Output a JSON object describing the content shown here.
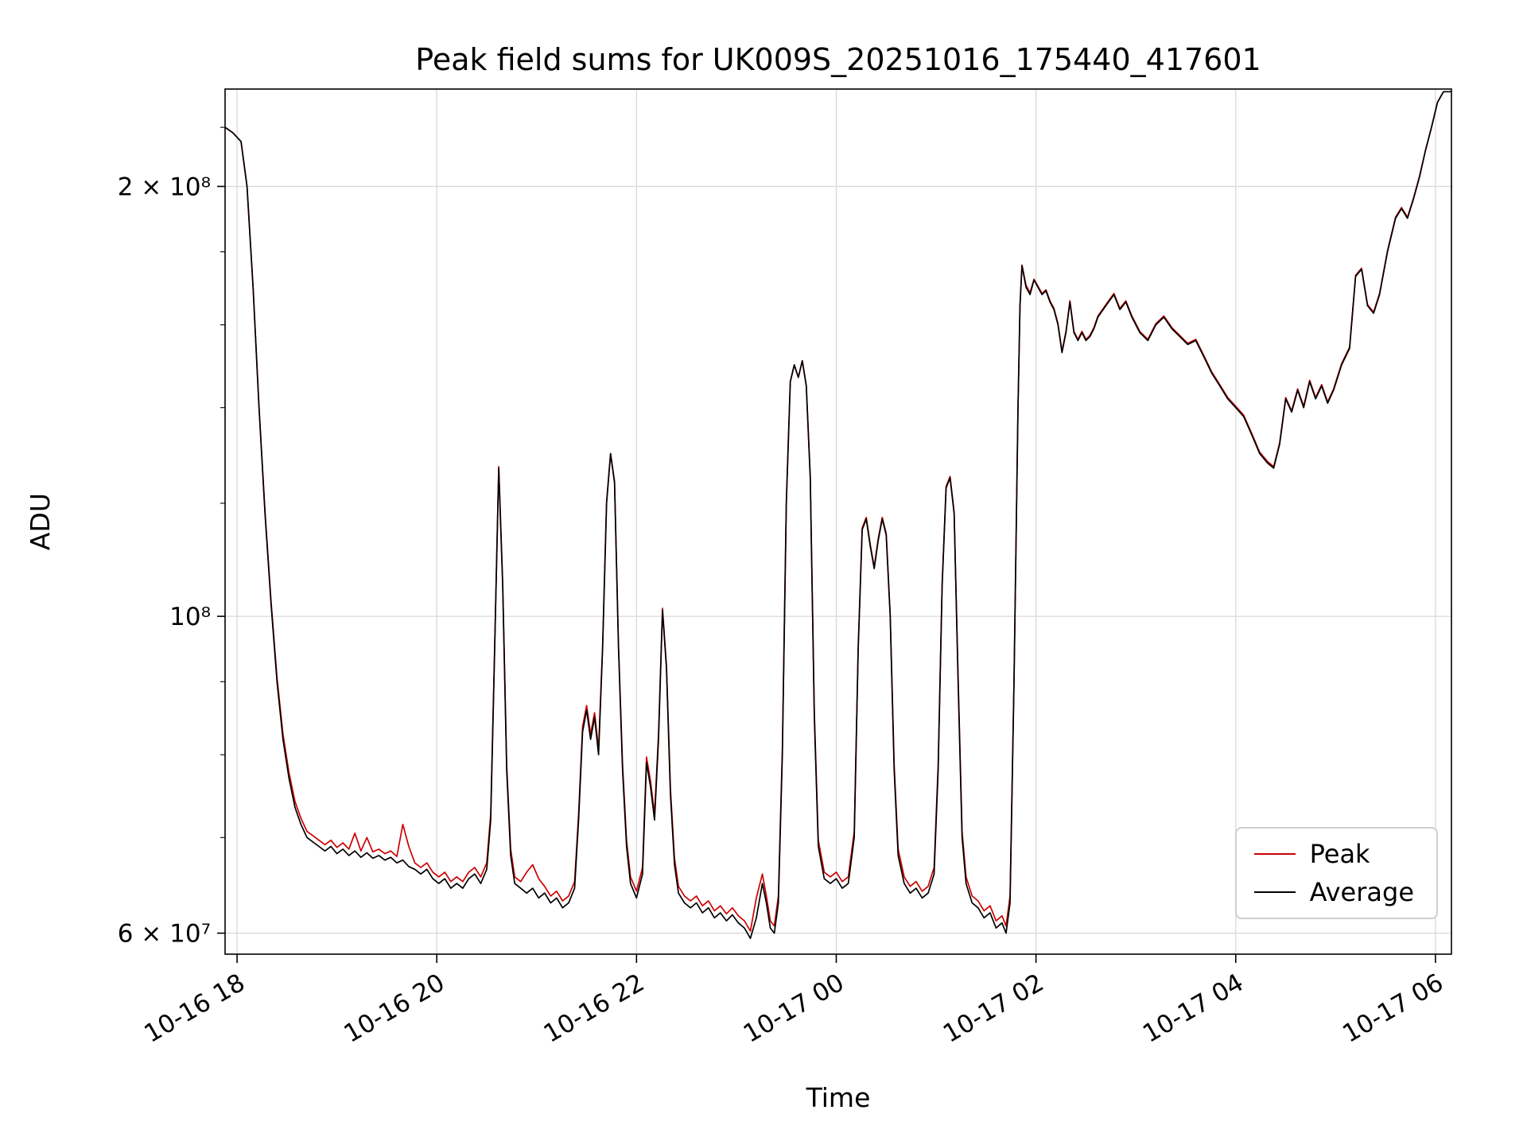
{
  "title": "Peak field sums for UK009S_20251016_175440_417601",
  "chart_data": {
    "type": "line",
    "title": "Peak field sums for UK009S_20251016_175440_417601",
    "xlabel": "Time",
    "ylabel": "ADU",
    "yscale": "log",
    "grid": true,
    "legend_position": "lower right",
    "x_unit": "decimal hours since 10-16 00:00",
    "value_scale": 10000000.0,
    "xlim": [
      17.88,
      30.16
    ],
    "ylim": [
      58000000.0,
      234000000.0
    ],
    "x_ticks": [
      {
        "hour": 18,
        "label": "10-16 18"
      },
      {
        "hour": 20,
        "label": "10-16 20"
      },
      {
        "hour": 22,
        "label": "10-16 22"
      },
      {
        "hour": 24,
        "label": "10-17 00"
      },
      {
        "hour": 26,
        "label": "10-17 02"
      },
      {
        "hour": 28,
        "label": "10-17 04"
      },
      {
        "hour": 30,
        "label": "10-17 06"
      }
    ],
    "y_ticks": [
      {
        "value": 60000000.0,
        "label": "6 × 10⁷"
      },
      {
        "value": 100000000.0,
        "label": "10⁸"
      },
      {
        "value": 200000000.0,
        "label": "2 × 10⁸"
      }
    ],
    "y_minor_ticks": [
      70000000.0,
      80000000.0,
      90000000.0,
      120000000.0,
      140000000.0,
      160000000.0,
      180000000.0,
      220000000.0
    ],
    "series_meta": [
      {
        "name": "Peak",
        "color": "#cc0000",
        "point_index": 2
      },
      {
        "name": "Average",
        "color": "#000000",
        "point_index": 1
      }
    ],
    "points_format": "[hour, average_x1e7, peak_x1e7]",
    "points": [
      [
        17.88,
        22.0,
        22.0
      ],
      [
        17.96,
        21.8,
        21.8
      ],
      [
        18.04,
        21.5,
        21.5
      ],
      [
        18.1,
        20.0,
        20.0
      ],
      [
        18.16,
        17.0,
        17.0
      ],
      [
        18.22,
        14.0,
        14.0
      ],
      [
        18.28,
        11.8,
        11.85
      ],
      [
        18.34,
        10.2,
        10.25
      ],
      [
        18.4,
        9.0,
        9.06
      ],
      [
        18.46,
        8.2,
        8.27
      ],
      [
        18.52,
        7.7,
        7.77
      ],
      [
        18.58,
        7.35,
        7.42
      ],
      [
        18.64,
        7.15,
        7.22
      ],
      [
        18.7,
        7.0,
        7.07
      ],
      [
        18.76,
        6.95,
        7.02
      ],
      [
        18.82,
        6.9,
        6.97
      ],
      [
        18.88,
        6.85,
        6.92
      ],
      [
        18.94,
        6.9,
        6.97
      ],
      [
        19.0,
        6.82,
        6.89
      ],
      [
        19.06,
        6.87,
        6.94
      ],
      [
        19.12,
        6.8,
        6.87
      ],
      [
        19.18,
        6.85,
        7.05
      ],
      [
        19.24,
        6.78,
        6.85
      ],
      [
        19.3,
        6.83,
        7.0
      ],
      [
        19.36,
        6.77,
        6.84
      ],
      [
        19.42,
        6.8,
        6.87
      ],
      [
        19.48,
        6.75,
        6.82
      ],
      [
        19.54,
        6.78,
        6.85
      ],
      [
        19.6,
        6.72,
        6.79
      ],
      [
        19.66,
        6.75,
        7.15
      ],
      [
        19.72,
        6.68,
        6.9
      ],
      [
        19.78,
        6.65,
        6.72
      ],
      [
        19.84,
        6.6,
        6.67
      ],
      [
        19.9,
        6.65,
        6.72
      ],
      [
        19.96,
        6.55,
        6.62
      ],
      [
        20.02,
        6.5,
        6.57
      ],
      [
        20.08,
        6.55,
        6.62
      ],
      [
        20.14,
        6.45,
        6.52
      ],
      [
        20.2,
        6.5,
        6.57
      ],
      [
        20.26,
        6.45,
        6.52
      ],
      [
        20.32,
        6.55,
        6.62
      ],
      [
        20.38,
        6.6,
        6.67
      ],
      [
        20.44,
        6.5,
        6.57
      ],
      [
        20.5,
        6.65,
        6.72
      ],
      [
        20.54,
        7.2,
        7.27
      ],
      [
        20.58,
        9.5,
        9.53
      ],
      [
        20.62,
        12.7,
        12.73
      ],
      [
        20.66,
        10.5,
        10.53
      ],
      [
        20.7,
        7.8,
        7.87
      ],
      [
        20.74,
        6.8,
        6.87
      ],
      [
        20.78,
        6.5,
        6.57
      ],
      [
        20.84,
        6.45,
        6.52
      ],
      [
        20.9,
        6.4,
        6.62
      ],
      [
        20.96,
        6.45,
        6.7
      ],
      [
        21.02,
        6.35,
        6.55
      ],
      [
        21.08,
        6.4,
        6.47
      ],
      [
        21.14,
        6.3,
        6.37
      ],
      [
        21.2,
        6.35,
        6.42
      ],
      [
        21.26,
        6.25,
        6.32
      ],
      [
        21.32,
        6.3,
        6.37
      ],
      [
        21.38,
        6.45,
        6.52
      ],
      [
        21.42,
        7.2,
        7.27
      ],
      [
        21.46,
        8.3,
        8.37
      ],
      [
        21.5,
        8.6,
        8.66
      ],
      [
        21.54,
        8.2,
        8.27
      ],
      [
        21.58,
        8.5,
        8.56
      ],
      [
        21.62,
        8.0,
        8.07
      ],
      [
        21.66,
        9.5,
        9.53
      ],
      [
        21.7,
        12.0,
        12.03
      ],
      [
        21.74,
        13.0,
        13.0
      ],
      [
        21.78,
        12.4,
        12.43
      ],
      [
        21.82,
        9.5,
        9.53
      ],
      [
        21.86,
        7.8,
        7.87
      ],
      [
        21.9,
        6.9,
        6.97
      ],
      [
        21.94,
        6.5,
        6.57
      ],
      [
        22.0,
        6.35,
        6.42
      ],
      [
        22.06,
        6.6,
        6.67
      ],
      [
        22.1,
        7.9,
        7.97
      ],
      [
        22.14,
        7.6,
        7.67
      ],
      [
        22.18,
        7.2,
        7.27
      ],
      [
        22.22,
        8.2,
        8.27
      ],
      [
        22.26,
        10.1,
        10.13
      ],
      [
        22.3,
        9.2,
        9.23
      ],
      [
        22.34,
        7.5,
        7.57
      ],
      [
        22.38,
        6.7,
        6.77
      ],
      [
        22.42,
        6.4,
        6.47
      ],
      [
        22.48,
        6.3,
        6.37
      ],
      [
        22.54,
        6.25,
        6.32
      ],
      [
        22.6,
        6.3,
        6.37
      ],
      [
        22.66,
        6.2,
        6.27
      ],
      [
        22.72,
        6.25,
        6.32
      ],
      [
        22.78,
        6.15,
        6.22
      ],
      [
        22.84,
        6.2,
        6.27
      ],
      [
        22.9,
        6.12,
        6.19
      ],
      [
        22.96,
        6.18,
        6.25
      ],
      [
        23.02,
        6.1,
        6.17
      ],
      [
        23.08,
        6.05,
        6.12
      ],
      [
        23.14,
        5.95,
        6.02
      ],
      [
        23.2,
        6.15,
        6.35
      ],
      [
        23.26,
        6.5,
        6.6
      ],
      [
        23.3,
        6.3,
        6.37
      ],
      [
        23.34,
        6.05,
        6.12
      ],
      [
        23.38,
        6.0,
        6.07
      ],
      [
        23.42,
        6.3,
        6.37
      ],
      [
        23.46,
        8.0,
        8.07
      ],
      [
        23.5,
        12.0,
        12.03
      ],
      [
        23.54,
        14.6,
        14.6
      ],
      [
        23.58,
        15.0,
        15.0
      ],
      [
        23.62,
        14.7,
        14.7
      ],
      [
        23.66,
        15.1,
        15.1
      ],
      [
        23.7,
        14.5,
        14.5
      ],
      [
        23.74,
        12.5,
        12.53
      ],
      [
        23.78,
        8.5,
        8.57
      ],
      [
        23.82,
        6.9,
        6.97
      ],
      [
        23.88,
        6.55,
        6.62
      ],
      [
        23.94,
        6.5,
        6.57
      ],
      [
        24.0,
        6.55,
        6.62
      ],
      [
        24.06,
        6.45,
        6.52
      ],
      [
        24.12,
        6.5,
        6.57
      ],
      [
        24.18,
        7.0,
        7.07
      ],
      [
        24.22,
        9.5,
        9.53
      ],
      [
        24.26,
        11.5,
        11.53
      ],
      [
        24.3,
        11.7,
        11.73
      ],
      [
        24.34,
        11.2,
        11.23
      ],
      [
        24.38,
        10.8,
        10.83
      ],
      [
        24.42,
        11.3,
        11.33
      ],
      [
        24.46,
        11.7,
        11.73
      ],
      [
        24.5,
        11.4,
        11.43
      ],
      [
        24.54,
        10.0,
        10.03
      ],
      [
        24.58,
        7.8,
        7.87
      ],
      [
        24.62,
        6.8,
        6.87
      ],
      [
        24.68,
        6.5,
        6.57
      ],
      [
        24.74,
        6.4,
        6.47
      ],
      [
        24.8,
        6.45,
        6.52
      ],
      [
        24.86,
        6.35,
        6.42
      ],
      [
        24.92,
        6.4,
        6.47
      ],
      [
        24.98,
        6.6,
        6.67
      ],
      [
        25.02,
        7.8,
        7.87
      ],
      [
        25.06,
        10.5,
        10.53
      ],
      [
        25.1,
        12.3,
        12.33
      ],
      [
        25.14,
        12.5,
        12.53
      ],
      [
        25.18,
        11.8,
        11.83
      ],
      [
        25.22,
        9.0,
        9.07
      ],
      [
        25.26,
        7.0,
        7.07
      ],
      [
        25.3,
        6.5,
        6.57
      ],
      [
        25.36,
        6.3,
        6.37
      ],
      [
        25.42,
        6.25,
        6.32
      ],
      [
        25.48,
        6.15,
        6.22
      ],
      [
        25.54,
        6.2,
        6.27
      ],
      [
        25.6,
        6.05,
        6.12
      ],
      [
        25.66,
        6.1,
        6.17
      ],
      [
        25.7,
        6.0,
        6.07
      ],
      [
        25.74,
        6.3,
        6.37
      ],
      [
        25.78,
        9.0,
        9.03
      ],
      [
        25.82,
        14.0,
        14.0
      ],
      [
        25.84,
        16.5,
        16.5
      ],
      [
        25.86,
        17.6,
        17.62
      ],
      [
        25.9,
        17.0,
        17.05
      ],
      [
        25.94,
        16.8,
        16.85
      ],
      [
        25.98,
        17.2,
        17.22
      ],
      [
        26.02,
        17.0,
        17.03
      ],
      [
        26.06,
        16.8,
        16.83
      ],
      [
        26.1,
        16.9,
        16.93
      ],
      [
        26.14,
        16.6,
        16.63
      ],
      [
        26.18,
        16.4,
        16.43
      ],
      [
        26.22,
        16.0,
        16.03
      ],
      [
        26.26,
        15.3,
        15.33
      ],
      [
        26.3,
        15.8,
        15.83
      ],
      [
        26.34,
        16.6,
        16.63
      ],
      [
        26.38,
        15.8,
        15.83
      ],
      [
        26.42,
        15.6,
        15.63
      ],
      [
        26.46,
        15.8,
        15.83
      ],
      [
        26.5,
        15.6,
        15.63
      ],
      [
        26.54,
        15.7,
        15.73
      ],
      [
        26.58,
        15.9,
        15.93
      ],
      [
        26.62,
        16.2,
        16.23
      ],
      [
        26.7,
        16.5,
        16.53
      ],
      [
        26.78,
        16.8,
        16.83
      ],
      [
        26.84,
        16.4,
        16.43
      ],
      [
        26.9,
        16.6,
        16.63
      ],
      [
        26.96,
        16.2,
        16.23
      ],
      [
        27.04,
        15.8,
        15.83
      ],
      [
        27.12,
        15.6,
        15.63
      ],
      [
        27.2,
        16.0,
        16.03
      ],
      [
        27.28,
        16.2,
        16.23
      ],
      [
        27.36,
        15.9,
        15.93
      ],
      [
        27.44,
        15.7,
        15.73
      ],
      [
        27.52,
        15.5,
        15.53
      ],
      [
        27.6,
        15.6,
        15.63
      ],
      [
        27.68,
        15.2,
        15.23
      ],
      [
        27.76,
        14.8,
        14.83
      ],
      [
        27.84,
        14.5,
        14.53
      ],
      [
        27.92,
        14.2,
        14.23
      ],
      [
        28.0,
        14.0,
        14.03
      ],
      [
        28.08,
        13.8,
        13.83
      ],
      [
        28.16,
        13.4,
        13.43
      ],
      [
        28.24,
        13.0,
        13.03
      ],
      [
        28.32,
        12.8,
        12.83
      ],
      [
        28.38,
        12.7,
        12.73
      ],
      [
        28.44,
        13.2,
        13.23
      ],
      [
        28.5,
        14.2,
        14.23
      ],
      [
        28.56,
        13.9,
        13.93
      ],
      [
        28.62,
        14.4,
        14.43
      ],
      [
        28.68,
        14.0,
        14.03
      ],
      [
        28.74,
        14.6,
        14.63
      ],
      [
        28.8,
        14.2,
        14.23
      ],
      [
        28.86,
        14.5,
        14.53
      ],
      [
        28.92,
        14.1,
        14.13
      ],
      [
        28.98,
        14.4,
        14.43
      ],
      [
        29.06,
        15.0,
        15.03
      ],
      [
        29.14,
        15.4,
        15.43
      ],
      [
        29.2,
        17.3,
        17.33
      ],
      [
        29.26,
        17.5,
        17.53
      ],
      [
        29.32,
        16.5,
        16.53
      ],
      [
        29.38,
        16.3,
        16.33
      ],
      [
        29.44,
        16.8,
        16.83
      ],
      [
        29.52,
        18.0,
        18.03
      ],
      [
        29.6,
        19.0,
        19.03
      ],
      [
        29.66,
        19.3,
        19.33
      ],
      [
        29.72,
        19.0,
        19.03
      ],
      [
        29.78,
        19.6,
        19.63
      ],
      [
        29.84,
        20.3,
        20.33
      ],
      [
        29.9,
        21.2,
        21.2
      ],
      [
        29.96,
        22.0,
        22.0
      ],
      [
        30.02,
        22.9,
        22.9
      ],
      [
        30.08,
        23.3,
        23.3
      ],
      [
        30.16,
        23.3,
        23.3
      ]
    ],
    "colors": {
      "grid": "#d9d9d9",
      "spine": "#000000",
      "text": "#000000",
      "peak_line": "#cc0000",
      "average_line": "#000000"
    }
  },
  "legend": {
    "items": [
      {
        "label": "Peak"
      },
      {
        "label": "Average"
      }
    ]
  }
}
